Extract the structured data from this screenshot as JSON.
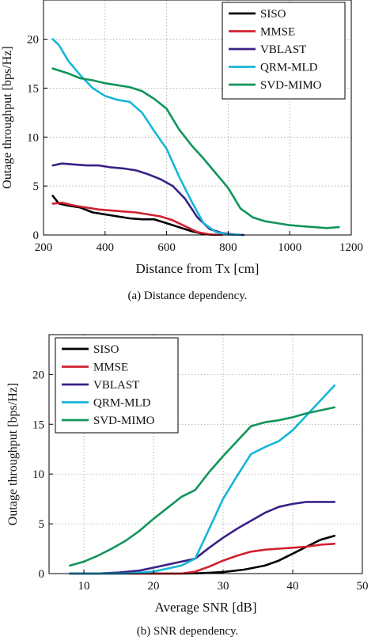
{
  "colors": {
    "SISO": "#000000",
    "MMSE": "#d0202e",
    "VBLAST": "#3a2186",
    "QRM-MLD": "#16b6d8",
    "SVD-MIMO": "#11955a"
  },
  "chart_data": [
    {
      "type": "line",
      "title": "",
      "caption": "(a) Distance dependency.",
      "xlabel": "Distance from Tx [cm]",
      "ylabel": "Outage throughput [bps/Hz]",
      "xlim": [
        200,
        1200
      ],
      "ylim": [
        0,
        24
      ],
      "xticks": [
        200,
        400,
        600,
        800,
        1000,
        1200
      ],
      "yticks": [
        0,
        5,
        10,
        15,
        20
      ],
      "grid": true,
      "legend": "top-right",
      "series": [
        {
          "name": "SISO",
          "x": [
            230,
            250,
            280,
            320,
            360,
            400,
            440,
            480,
            520,
            560,
            600,
            640,
            680,
            720,
            760
          ],
          "y": [
            4.0,
            3.2,
            3.0,
            2.8,
            2.3,
            2.1,
            1.9,
            1.7,
            1.6,
            1.6,
            1.2,
            0.8,
            0.4,
            0.1,
            0.0
          ]
        },
        {
          "name": "MMSE",
          "x": [
            230,
            260,
            300,
            340,
            380,
            420,
            460,
            500,
            540,
            580,
            620,
            660,
            700,
            740,
            780
          ],
          "y": [
            3.2,
            3.3,
            3.0,
            2.8,
            2.6,
            2.5,
            2.4,
            2.3,
            2.1,
            1.9,
            1.5,
            0.9,
            0.3,
            0.05,
            0.0
          ]
        },
        {
          "name": "VBLAST",
          "x": [
            230,
            260,
            300,
            340,
            380,
            420,
            460,
            500,
            540,
            580,
            620,
            660,
            700,
            740,
            780,
            820,
            850
          ],
          "y": [
            7.1,
            7.3,
            7.2,
            7.1,
            7.1,
            6.9,
            6.8,
            6.6,
            6.2,
            5.7,
            5.0,
            3.7,
            1.8,
            0.6,
            0.2,
            0.05,
            0.0
          ]
        },
        {
          "name": "QRM-MLD",
          "x": [
            230,
            250,
            280,
            320,
            360,
            400,
            440,
            480,
            520,
            560,
            600,
            640,
            680,
            720,
            760,
            800,
            840
          ],
          "y": [
            20.0,
            19.4,
            17.8,
            16.3,
            15.0,
            14.2,
            13.8,
            13.6,
            12.5,
            10.6,
            8.8,
            6.0,
            3.5,
            1.2,
            0.3,
            0.05,
            0.0
          ]
        },
        {
          "name": "SVD-MIMO",
          "x": [
            230,
            280,
            320,
            360,
            400,
            440,
            480,
            520,
            560,
            600,
            640,
            680,
            720,
            760,
            800,
            840,
            880,
            920,
            960,
            1000,
            1040,
            1080,
            1120,
            1160
          ],
          "y": [
            17.0,
            16.5,
            16.0,
            15.8,
            15.5,
            15.3,
            15.1,
            14.7,
            13.9,
            12.9,
            10.8,
            9.2,
            7.8,
            6.3,
            4.8,
            2.7,
            1.8,
            1.4,
            1.2,
            1.0,
            0.9,
            0.8,
            0.7,
            0.8
          ]
        }
      ]
    },
    {
      "type": "line",
      "title": "",
      "caption": "(b) SNR dependency.",
      "xlabel": "Average SNR [dB]",
      "ylabel": "Outage throughput [bps/Hz]",
      "xlim": [
        5,
        50
      ],
      "ylim": [
        0,
        24
      ],
      "xticks": [
        10,
        20,
        30,
        40,
        50
      ],
      "yticks": [
        0,
        5,
        10,
        15,
        20
      ],
      "grid": true,
      "legend": "top-left",
      "series": [
        {
          "name": "SISO",
          "x": [
            8,
            12,
            16,
            20,
            24,
            27,
            30,
            33,
            36,
            38,
            40,
            42,
            44,
            46
          ],
          "y": [
            0,
            0,
            0,
            0,
            0,
            0.05,
            0.15,
            0.4,
            0.8,
            1.3,
            2.0,
            2.7,
            3.4,
            3.8
          ]
        },
        {
          "name": "MMSE",
          "x": [
            8,
            12,
            16,
            20,
            24,
            26,
            28,
            30,
            32,
            34,
            36,
            38,
            40,
            42,
            44,
            46
          ],
          "y": [
            0,
            0,
            0,
            0,
            0,
            0.2,
            0.7,
            1.3,
            1.8,
            2.2,
            2.4,
            2.5,
            2.6,
            2.7,
            2.9,
            3.0
          ]
        },
        {
          "name": "VBLAST",
          "x": [
            8,
            12,
            15,
            18,
            20,
            22,
            24,
            26,
            28,
            30,
            32,
            34,
            36,
            38,
            40,
            42,
            44,
            46
          ],
          "y": [
            0,
            0,
            0.1,
            0.3,
            0.6,
            0.9,
            1.2,
            1.5,
            2.6,
            3.6,
            4.5,
            5.3,
            6.1,
            6.7,
            7.0,
            7.2,
            7.2,
            7.2
          ]
        },
        {
          "name": "QRM-MLD",
          "x": [
            8,
            12,
            16,
            20,
            24,
            26,
            28,
            30,
            32,
            34,
            36,
            38,
            40,
            42,
            44,
            46
          ],
          "y": [
            0,
            0,
            0,
            0.2,
            0.8,
            1.5,
            4.5,
            7.5,
            9.8,
            12.0,
            12.7,
            13.3,
            14.4,
            15.9,
            17.4,
            18.9
          ]
        },
        {
          "name": "SVD-MIMO",
          "x": [
            8,
            10,
            12,
            14,
            16,
            18,
            20,
            22,
            24,
            26,
            28,
            30,
            32,
            34,
            36,
            38,
            40,
            42,
            44,
            46
          ],
          "y": [
            0.8,
            1.2,
            1.8,
            2.5,
            3.3,
            4.3,
            5.5,
            6.6,
            7.7,
            8.4,
            10.2,
            11.8,
            13.3,
            14.8,
            15.2,
            15.4,
            15.7,
            16.1,
            16.4,
            16.7
          ]
        }
      ]
    }
  ]
}
